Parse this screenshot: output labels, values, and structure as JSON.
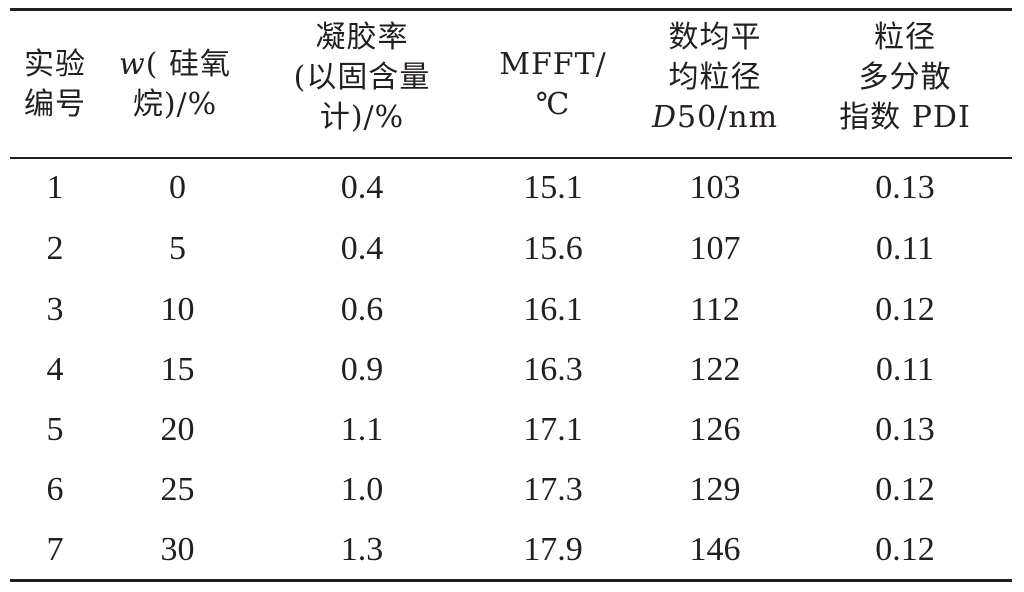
{
  "header": {
    "col1": [
      "实验",
      "编号"
    ],
    "col2": {
      "line1_var": "w",
      "line1_rest": "( 硅氧",
      "line2": "烷)/%"
    },
    "col3": [
      "凝胶率",
      "(以固含量",
      "计)/%"
    ],
    "col4": [
      "MFFT/",
      "℃"
    ],
    "col5": {
      "line1": "数均平",
      "line2": "均粒径",
      "line3_var": "D",
      "line3_rest": "50/nm"
    },
    "col6": [
      "粒径",
      "多分散",
      "指数 PDI"
    ]
  },
  "rows": [
    [
      "1",
      "0",
      "0.4",
      "15.1",
      "103",
      "0.13"
    ],
    [
      "2",
      "5",
      "0.4",
      "15.6",
      "107",
      "0.11"
    ],
    [
      "3",
      "10",
      "0.6",
      "16.1",
      "112",
      "0.12"
    ],
    [
      "4",
      "15",
      "0.9",
      "16.3",
      "122",
      "0.11"
    ],
    [
      "5",
      "20",
      "1.1",
      "17.1",
      "126",
      "0.13"
    ],
    [
      "6",
      "25",
      "1.0",
      "17.3",
      "129",
      "0.12"
    ],
    [
      "7",
      "30",
      "1.3",
      "17.9",
      "146",
      "0.12"
    ]
  ]
}
